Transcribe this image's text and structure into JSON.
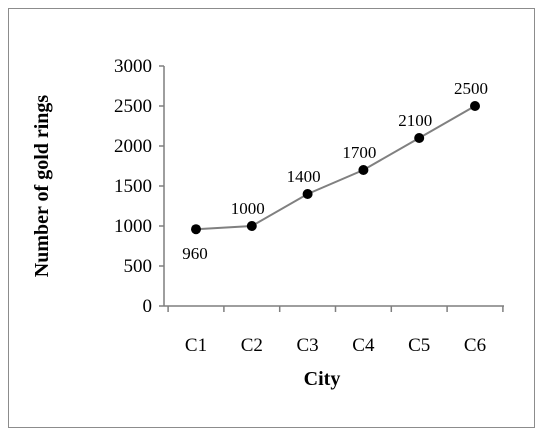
{
  "chart_data": {
    "type": "line",
    "categories": [
      "C1",
      "C2",
      "C3",
      "C4",
      "C5",
      "C6"
    ],
    "series": [
      {
        "values": [
          960,
          1000,
          1400,
          1700,
          2100,
          2500
        ]
      }
    ],
    "data_labels": [
      "960",
      "1000",
      "1400",
      "1700",
      "2100",
      "2500"
    ],
    "xlabel": "City",
    "ylabel": "Number of gold rings",
    "ylim": [
      0,
      3000
    ],
    "yticks": [
      0,
      500,
      1000,
      1500,
      2000,
      2500,
      3000
    ],
    "ytick_labels": [
      "0",
      "500",
      "1000",
      "1500",
      "2000",
      "2500",
      "3000"
    ],
    "grid": false,
    "legend": "none",
    "line_color": "#808080",
    "marker_color": "#000000"
  }
}
